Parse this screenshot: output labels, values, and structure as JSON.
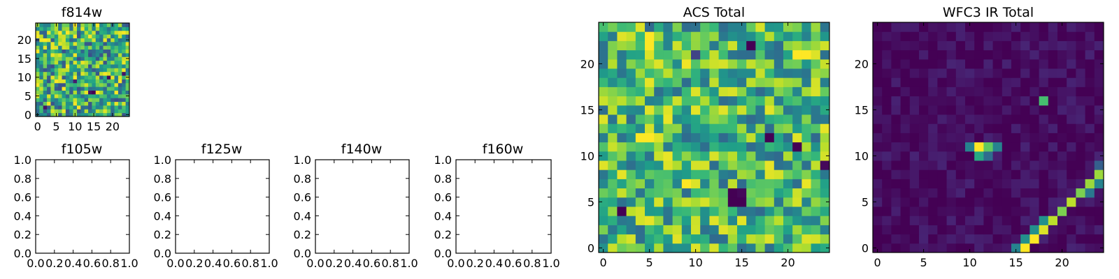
{
  "chart_data": [
    {
      "id": "f814w",
      "type": "heatmap",
      "title": "f814w",
      "grid_size": 25,
      "colormap": "viridis",
      "xticks": [
        "0",
        "5",
        "10",
        "15",
        "20"
      ],
      "yticks": [
        "0",
        "5",
        "10",
        "15",
        "20"
      ],
      "xlim": [
        -0.5,
        24.5
      ],
      "ylim": [
        -0.5,
        24.5
      ],
      "pattern": "noise",
      "seed": 11,
      "base": 0.62,
      "noise_amp": 0.38,
      "hotspots": [
        {
          "x": 15,
          "y": 6,
          "value": 0.0
        },
        {
          "x": 14,
          "y": 6,
          "value": 0.05
        },
        {
          "x": 19,
          "y": 10,
          "value": 0.02
        },
        {
          "x": 10,
          "y": 9,
          "value": 0.08
        },
        {
          "x": 23,
          "y": 11,
          "value": 0.05
        },
        {
          "x": 2,
          "y": 2,
          "value": 0.05
        },
        {
          "x": 5,
          "y": 18,
          "value": 0.95
        },
        {
          "x": 6,
          "y": 19,
          "value": 0.95
        }
      ]
    },
    {
      "id": "f105w",
      "type": "empty",
      "title": "f105w",
      "xticks": [
        "0.0",
        "0.2",
        "0.4",
        "0.6",
        "0.8",
        "1.0"
      ],
      "yticks": [
        "0.0",
        "0.2",
        "0.4",
        "0.6",
        "0.8",
        "1.0"
      ],
      "xlim": [
        0,
        1
      ],
      "ylim": [
        0,
        1
      ]
    },
    {
      "id": "f125w",
      "type": "empty",
      "title": "f125w",
      "xticks": [
        "0.0",
        "0.2",
        "0.4",
        "0.6",
        "0.8",
        "1.0"
      ],
      "yticks": [
        "0.0",
        "0.2",
        "0.4",
        "0.6",
        "0.8",
        "1.0"
      ],
      "xlim": [
        0,
        1
      ],
      "ylim": [
        0,
        1
      ]
    },
    {
      "id": "f140w",
      "type": "empty",
      "title": "f140w",
      "xticks": [
        "0.0",
        "0.2",
        "0.4",
        "0.6",
        "0.8",
        "1.0"
      ],
      "yticks": [
        "0.0",
        "0.2",
        "0.4",
        "0.6",
        "0.8",
        "1.0"
      ],
      "xlim": [
        0,
        1
      ],
      "ylim": [
        0,
        1
      ]
    },
    {
      "id": "f160w",
      "type": "empty",
      "title": "f160w",
      "xticks": [
        "0.0",
        "0.2",
        "0.4",
        "0.6",
        "0.8",
        "1.0"
      ],
      "yticks": [
        "0.0",
        "0.2",
        "0.4",
        "0.6",
        "0.8",
        "1.0"
      ],
      "xlim": [
        0,
        1
      ],
      "ylim": [
        0,
        1
      ]
    },
    {
      "id": "acs-total",
      "type": "heatmap",
      "title": "ACS Total",
      "grid_size": 25,
      "colormap": "viridis",
      "xticks": [
        "0",
        "5",
        "10",
        "15",
        "20"
      ],
      "yticks": [
        "0",
        "5",
        "10",
        "15",
        "20"
      ],
      "xlim": [
        -0.5,
        24.5
      ],
      "ylim": [
        -0.5,
        24.5
      ],
      "pattern": "noise",
      "seed": 29,
      "base": 0.66,
      "noise_amp": 0.32,
      "hotspots": [
        {
          "x": 14,
          "y": 5,
          "value": 0.0
        },
        {
          "x": 15,
          "y": 5,
          "value": 0.0
        },
        {
          "x": 14,
          "y": 6,
          "value": 0.0
        },
        {
          "x": 15,
          "y": 6,
          "value": 0.02
        },
        {
          "x": 2,
          "y": 4,
          "value": 0.0
        },
        {
          "x": 18,
          "y": 12,
          "value": 0.0
        },
        {
          "x": 21,
          "y": 11,
          "value": 0.0
        },
        {
          "x": 24,
          "y": 9,
          "value": 0.02
        },
        {
          "x": 16,
          "y": 22,
          "value": 0.0
        },
        {
          "x": 10,
          "y": 21,
          "value": 0.2
        },
        {
          "x": 4,
          "y": 24,
          "value": 0.95
        },
        {
          "x": 5,
          "y": 23,
          "value": 1.0
        },
        {
          "x": 5,
          "y": 22,
          "value": 1.0
        },
        {
          "x": 5,
          "y": 21,
          "value": 0.95
        },
        {
          "x": 6,
          "y": 20,
          "value": 0.95
        },
        {
          "x": 4,
          "y": 12,
          "value": 1.0
        },
        {
          "x": 5,
          "y": 12,
          "value": 1.0
        },
        {
          "x": 6,
          "y": 12,
          "value": 0.95
        },
        {
          "x": 21,
          "y": 21,
          "value": 1.0
        },
        {
          "x": 22,
          "y": 21,
          "value": 1.0
        },
        {
          "x": 23,
          "y": 21,
          "value": 0.95
        },
        {
          "x": 9,
          "y": 7,
          "value": 1.0
        },
        {
          "x": 10,
          "y": 7,
          "value": 0.95
        }
      ]
    },
    {
      "id": "wfc3-ir-total",
      "type": "heatmap",
      "title": "WFC3 IR Total",
      "grid_size": 25,
      "colormap": "viridis",
      "xticks": [
        "0",
        "5",
        "10",
        "15",
        "20"
      ],
      "yticks": [
        "0",
        "5",
        "10",
        "15",
        "20"
      ],
      "xlim": [
        -0.5,
        24.5
      ],
      "ylim": [
        -0.5,
        24.5
      ],
      "pattern": "dark",
      "seed": 47,
      "base": 0.03,
      "noise_amp": 0.07,
      "hotspots": [
        {
          "x": 10,
          "y": 11,
          "value": 0.45
        },
        {
          "x": 11,
          "y": 11,
          "value": 1.0
        },
        {
          "x": 12,
          "y": 11,
          "value": 0.75
        },
        {
          "x": 13,
          "y": 11,
          "value": 0.45
        },
        {
          "x": 11,
          "y": 10,
          "value": 0.6
        },
        {
          "x": 12,
          "y": 10,
          "value": 0.35
        },
        {
          "x": 18,
          "y": 16,
          "value": 0.7
        },
        {
          "x": 16,
          "y": 0,
          "value": 1.0
        },
        {
          "x": 15,
          "y": 0,
          "value": 0.45
        },
        {
          "x": 17,
          "y": 1,
          "value": 1.0
        },
        {
          "x": 16,
          "y": 1,
          "value": 0.5
        },
        {
          "x": 18,
          "y": 2,
          "value": 0.95
        },
        {
          "x": 17,
          "y": 2,
          "value": 0.5
        },
        {
          "x": 19,
          "y": 3,
          "value": 0.9
        },
        {
          "x": 18,
          "y": 3,
          "value": 0.5
        },
        {
          "x": 20,
          "y": 4,
          "value": 0.8
        },
        {
          "x": 21,
          "y": 5,
          "value": 0.9
        },
        {
          "x": 22,
          "y": 6,
          "value": 0.8
        },
        {
          "x": 23,
          "y": 7,
          "value": 0.85
        },
        {
          "x": 24,
          "y": 8,
          "value": 0.85
        },
        {
          "x": 24,
          "y": 7,
          "value": 0.45
        },
        {
          "x": 23,
          "y": 6,
          "value": 0.4
        },
        {
          "x": 24,
          "y": 9,
          "value": 0.3
        }
      ]
    }
  ]
}
